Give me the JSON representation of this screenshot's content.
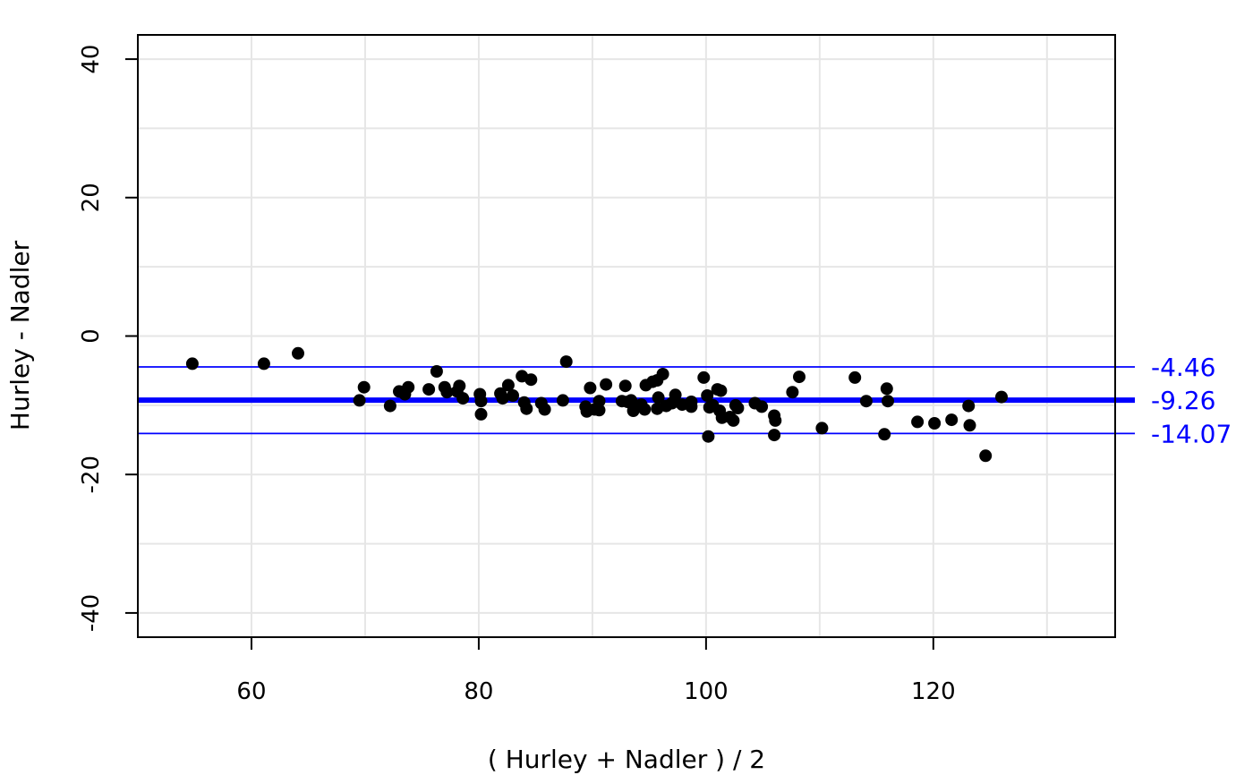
{
  "chart_data": {
    "type": "scatter",
    "title": "",
    "xlabel": "( Hurley + Nadler ) / 2",
    "ylabel": "Hurley - Nadler",
    "xlim": [
      50,
      136
    ],
    "ylim": [
      -43.5,
      43.5
    ],
    "x_ticks": [
      60,
      80,
      100,
      120
    ],
    "x_tick_labels": [
      "60",
      "80",
      "100",
      "120"
    ],
    "y_ticks": [
      -40,
      -20,
      0,
      20,
      40
    ],
    "y_tick_labels": [
      "-40",
      "-20",
      "0",
      "20",
      "40"
    ],
    "x_minor_gridlines": [
      70,
      90,
      110,
      130
    ],
    "y_minor_gridlines": [
      -30,
      -10,
      10,
      30
    ],
    "grid": true,
    "reference_lines": [
      {
        "name": "upper-limit",
        "value": -4.46,
        "label": "-4.46",
        "color": "#0000ff",
        "weight": "thin"
      },
      {
        "name": "mean-difference",
        "value": -9.26,
        "label": "-9.26",
        "color": "#0000ff",
        "weight": "thick"
      },
      {
        "name": "lower-limit",
        "value": -14.07,
        "label": "-14.07",
        "color": "#0000ff",
        "weight": "thin"
      }
    ],
    "point_color": "#000000",
    "points": [
      [
        54.8,
        -4.0
      ],
      [
        61.1,
        -4.0
      ],
      [
        64.1,
        -2.5
      ],
      [
        69.5,
        -9.3
      ],
      [
        69.9,
        -7.4
      ],
      [
        72.2,
        -10.1
      ],
      [
        73.0,
        -8.0
      ],
      [
        73.5,
        -8.4
      ],
      [
        73.8,
        -7.4
      ],
      [
        75.6,
        -7.7
      ],
      [
        76.3,
        -5.1
      ],
      [
        77.0,
        -7.4
      ],
      [
        77.2,
        -8.1
      ],
      [
        78.1,
        -8.0
      ],
      [
        78.3,
        -7.2
      ],
      [
        78.6,
        -9.0
      ],
      [
        80.1,
        -8.4
      ],
      [
        80.2,
        -9.4
      ],
      [
        80.2,
        -11.3
      ],
      [
        81.9,
        -8.3
      ],
      [
        82.1,
        -9.0
      ],
      [
        82.6,
        -7.1
      ],
      [
        83.0,
        -8.6
      ],
      [
        83.8,
        -5.8
      ],
      [
        84.0,
        -9.6
      ],
      [
        84.2,
        -10.5
      ],
      [
        84.6,
        -6.3
      ],
      [
        85.5,
        -9.7
      ],
      [
        85.8,
        -10.6
      ],
      [
        87.4,
        -9.3
      ],
      [
        87.7,
        -3.7
      ],
      [
        89.4,
        -10.2
      ],
      [
        89.5,
        -10.9
      ],
      [
        89.8,
        -7.5
      ],
      [
        90.2,
        -10.6
      ],
      [
        90.6,
        -9.4
      ],
      [
        90.6,
        -10.7
      ],
      [
        91.2,
        -7.0
      ],
      [
        92.6,
        -9.4
      ],
      [
        92.9,
        -7.2
      ],
      [
        93.1,
        -9.5
      ],
      [
        93.4,
        -9.3
      ],
      [
        93.6,
        -10.8
      ],
      [
        94.3,
        -9.9
      ],
      [
        94.6,
        -10.6
      ],
      [
        94.7,
        -7.1
      ],
      [
        95.3,
        -6.6
      ],
      [
        95.7,
        -6.4
      ],
      [
        95.8,
        -8.9
      ],
      [
        95.7,
        -10.5
      ],
      [
        96.2,
        -5.5
      ],
      [
        96.5,
        -10.1
      ],
      [
        97.0,
        -9.7
      ],
      [
        97.3,
        -8.5
      ],
      [
        97.9,
        -9.9
      ],
      [
        98.7,
        -9.5
      ],
      [
        98.7,
        -10.2
      ],
      [
        99.8,
        -6.0
      ],
      [
        100.1,
        -8.6
      ],
      [
        100.2,
        -14.5
      ],
      [
        100.3,
        -10.3
      ],
      [
        100.6,
        -10.0
      ],
      [
        101.0,
        -7.7
      ],
      [
        101.2,
        -10.8
      ],
      [
        101.3,
        -7.9
      ],
      [
        101.4,
        -11.8
      ],
      [
        102.1,
        -11.7
      ],
      [
        102.4,
        -12.2
      ],
      [
        102.6,
        -10.0
      ],
      [
        102.8,
        -10.4
      ],
      [
        104.3,
        -9.7
      ],
      [
        104.9,
        -10.2
      ],
      [
        106.0,
        -11.5
      ],
      [
        106.1,
        -12.2
      ],
      [
        106.0,
        -14.3
      ],
      [
        107.6,
        -8.1
      ],
      [
        108.2,
        -5.9
      ],
      [
        110.2,
        -13.3
      ],
      [
        113.1,
        -6.0
      ],
      [
        114.1,
        -9.4
      ],
      [
        115.7,
        -14.2
      ],
      [
        115.9,
        -7.6
      ],
      [
        116.0,
        -9.4
      ],
      [
        118.6,
        -12.4
      ],
      [
        120.1,
        -12.6
      ],
      [
        121.6,
        -12.1
      ],
      [
        123.1,
        -10.1
      ],
      [
        123.2,
        -12.9
      ],
      [
        124.6,
        -17.3
      ],
      [
        126.0,
        -8.8
      ]
    ]
  }
}
